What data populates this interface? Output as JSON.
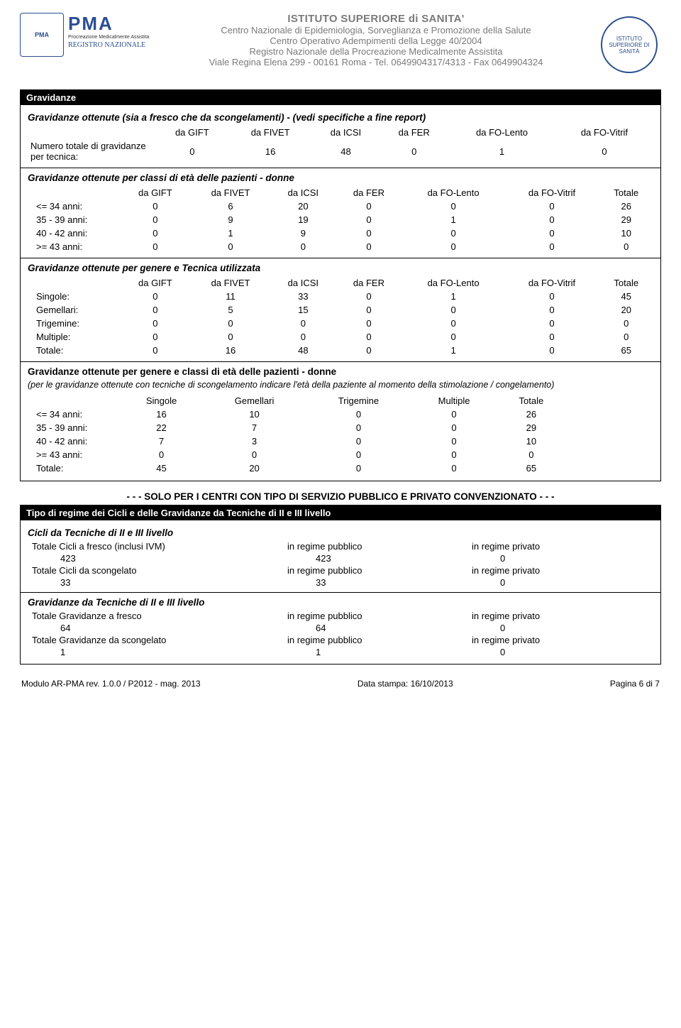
{
  "header": {
    "org_title": "ISTITUTO SUPERIORE di SANITA'",
    "line2": "Centro Nazionale di Epidemiologia, Sorveglianza e Promozione della Salute",
    "line3": "Centro Operativo Adempimenti della Legge 40/2004",
    "line4": "Registro Nazionale della Procreazione Medicalmente Assistita",
    "line5": "Viale Regina Elena 299 - 00161 Roma - Tel. 0649904317/4313 - Fax 0649904324",
    "pma_acronym": "PMA",
    "pma_sub": "Procreazione Medicalmente Assistita",
    "pma_reg": "REGISTRO NAZIONALE",
    "iss_seal_label": "ISTITUTO SUPERIORE DI SANITÀ"
  },
  "tech_cols": [
    "da GIFT",
    "da FIVET",
    "da ICSI",
    "da FER",
    "da FO-Lento",
    "da FO-Vitrif"
  ],
  "totale_label": "Totale",
  "section1": {
    "title": "Gravidanze",
    "sub1": "Gravidanze ottenute (sia a fresco che da scongelamenti) -  (vedi specifiche a fine report)",
    "row1_label": "Numero totale di gravidanze per tecnica:",
    "row1_vals": [
      "0",
      "16",
      "48",
      "0",
      "1",
      "0"
    ],
    "sub2": "Gravidanze ottenute per classi di età delle pazienti - donne",
    "age_rows": [
      {
        "label": "<= 34 anni:",
        "v": [
          "0",
          "6",
          "20",
          "0",
          "0",
          "0",
          "26"
        ]
      },
      {
        "label": "35 - 39 anni:",
        "v": [
          "0",
          "9",
          "19",
          "0",
          "1",
          "0",
          "29"
        ]
      },
      {
        "label": "40 - 42 anni:",
        "v": [
          "0",
          "1",
          "9",
          "0",
          "0",
          "0",
          "10"
        ]
      },
      {
        "label": ">= 43 anni:",
        "v": [
          "0",
          "0",
          "0",
          "0",
          "0",
          "0",
          "0"
        ]
      }
    ],
    "sub3": "Gravidanze ottenute per genere e Tecnica utilizzata",
    "type_rows": [
      {
        "label": "Singole:",
        "v": [
          "0",
          "11",
          "33",
          "0",
          "1",
          "0",
          "45"
        ]
      },
      {
        "label": "Gemellari:",
        "v": [
          "0",
          "5",
          "15",
          "0",
          "0",
          "0",
          "20"
        ]
      },
      {
        "label": "Trigemine:",
        "v": [
          "0",
          "0",
          "0",
          "0",
          "0",
          "0",
          "0"
        ]
      },
      {
        "label": "Multiple:",
        "v": [
          "0",
          "0",
          "0",
          "0",
          "0",
          "0",
          "0"
        ]
      },
      {
        "label": "Totale:",
        "v": [
          "0",
          "16",
          "48",
          "0",
          "1",
          "0",
          "65"
        ]
      }
    ],
    "sub4": "Gravidanze ottenute per genere e classi di età delle pazienti - donne",
    "sub4_note": "(per le gravidanze ottenute con tecniche di scongelamento indicare l'età della paziente al momento della stimolazione / congelamento)",
    "cross_cols": [
      "Singole",
      "Gemellari",
      "Trigemine",
      "Multiple",
      "Totale"
    ],
    "cross_rows": [
      {
        "label": "<= 34 anni:",
        "v": [
          "16",
          "10",
          "0",
          "0",
          "26"
        ]
      },
      {
        "label": "35 - 39 anni:",
        "v": [
          "22",
          "7",
          "0",
          "0",
          "29"
        ]
      },
      {
        "label": "40 - 42 anni:",
        "v": [
          "7",
          "3",
          "0",
          "0",
          "10"
        ]
      },
      {
        "label": ">= 43 anni:",
        "v": [
          "0",
          "0",
          "0",
          "0",
          "0"
        ]
      },
      {
        "label": "Totale:",
        "v": [
          "45",
          "20",
          "0",
          "0",
          "65"
        ]
      }
    ]
  },
  "divider": "- - - SOLO PER I CENTRI CON TIPO DI SERVIZIO PUBBLICO E PRIVATO CONVENZIONATO - - -",
  "section2": {
    "title": "Tipo di regime dei Cicli e delle Gravidanze da Tecniche di II e III livello",
    "cicli_title": "Cicli da Tecniche di II e III livello",
    "label_pub": "in regime pubblico",
    "label_priv": "in regime privato",
    "cicli_rows": [
      {
        "label": "Totale Cicli a fresco (inclusi IVM)",
        "v": [
          "423",
          "423",
          "0"
        ]
      },
      {
        "label": "Totale Cicli da scongelato",
        "v": [
          "33",
          "33",
          "0"
        ]
      }
    ],
    "grav_title": "Gravidanze da Tecniche di II e III livello",
    "grav_rows": [
      {
        "label": "Totale Gravidanze a fresco",
        "v": [
          "64",
          "64",
          "0"
        ]
      },
      {
        "label": "Totale Gravidanze da scongelato",
        "v": [
          "1",
          "1",
          "0"
        ]
      }
    ]
  },
  "footer": {
    "left": "Modulo AR-PMA rev. 1.0.0 / P2012 - mag. 2013",
    "center": "Data stampa: 16/10/2013",
    "right": "Pagina 6 di 7"
  }
}
